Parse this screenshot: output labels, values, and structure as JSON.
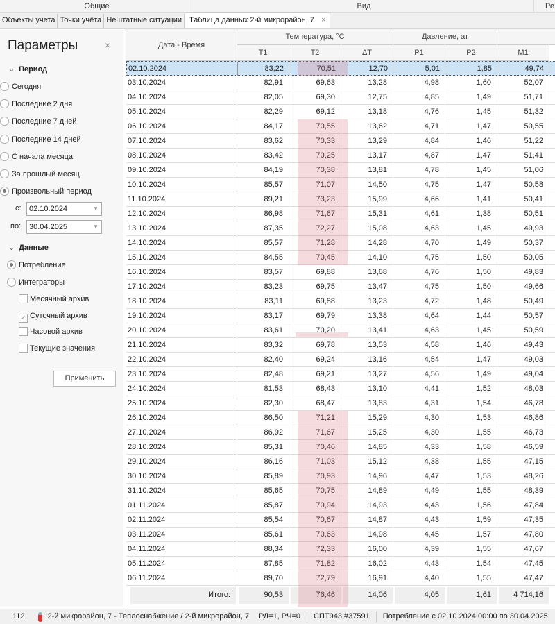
{
  "ribbon": {
    "groups": [
      "Общие",
      "Вид",
      "Ре"
    ]
  },
  "tabs": [
    {
      "label": "Объекты учета"
    },
    {
      "label": "Точки учёта"
    },
    {
      "label": "Нештатные ситуации"
    },
    {
      "label": "Таблица данных 2-й микрорайон, 7",
      "close": "×"
    }
  ],
  "params": {
    "title": "Параметры",
    "close": "×",
    "period_label": "Период",
    "period_options": [
      "Сегодня",
      "Последние 2 дня",
      "Последние 7 дней",
      "Последние 14 дней",
      "С начала месяца",
      "За прошлый месяц",
      "Произвольный период"
    ],
    "period_selected": 6,
    "from_label": "с:",
    "from_value": "02.10.2024",
    "to_label": "по:",
    "to_value": "30.04.2025",
    "data_label": "Данные",
    "data_options": [
      "Потребление",
      "Интеграторы"
    ],
    "data_selected": 0,
    "archives": [
      {
        "label": "Месячный архив",
        "checked": false
      },
      {
        "label": "Суточный архив",
        "checked": true
      },
      {
        "label": "Часовой архив",
        "checked": false
      },
      {
        "label": "Текущие значения",
        "checked": false
      }
    ],
    "apply": "Применить"
  },
  "table": {
    "date_header": "Дата - Время",
    "temp_group": "Температура, °С",
    "pressure_group": "Давление, ат",
    "columns": [
      "T1",
      "T2",
      "ΔT",
      "P1",
      "P2",
      "M1"
    ],
    "rows": [
      [
        "02.10.2024",
        "83,22",
        "70,51",
        "12,70",
        "5,01",
        "1,85",
        "49,74",
        1
      ],
      [
        "03.10.2024",
        "82,91",
        "69,63",
        "13,28",
        "4,98",
        "1,60",
        "52,07",
        0
      ],
      [
        "04.10.2024",
        "82,05",
        "69,30",
        "12,75",
        "4,85",
        "1,49",
        "51,71",
        0
      ],
      [
        "05.10.2024",
        "82,29",
        "69,12",
        "13,18",
        "4,76",
        "1,45",
        "51,32",
        0
      ],
      [
        "06.10.2024",
        "84,17",
        "70,55",
        "13,62",
        "4,71",
        "1,47",
        "50,55",
        1
      ],
      [
        "07.10.2024",
        "83,62",
        "70,33",
        "13,29",
        "4,84",
        "1,46",
        "51,22",
        1
      ],
      [
        "08.10.2024",
        "83,42",
        "70,25",
        "13,17",
        "4,87",
        "1,47",
        "51,41",
        1
      ],
      [
        "09.10.2024",
        "84,19",
        "70,38",
        "13,81",
        "4,78",
        "1,45",
        "51,06",
        1
      ],
      [
        "10.10.2024",
        "85,57",
        "71,07",
        "14,50",
        "4,75",
        "1,47",
        "50,58",
        1
      ],
      [
        "11.10.2024",
        "89,21",
        "73,23",
        "15,99",
        "4,66",
        "1,41",
        "50,41",
        1
      ],
      [
        "12.10.2024",
        "86,98",
        "71,67",
        "15,31",
        "4,61",
        "1,38",
        "50,51",
        1
      ],
      [
        "13.10.2024",
        "87,35",
        "72,27",
        "15,08",
        "4,63",
        "1,45",
        "49,93",
        1
      ],
      [
        "14.10.2024",
        "85,57",
        "71,28",
        "14,28",
        "4,70",
        "1,49",
        "50,37",
        1
      ],
      [
        "15.10.2024",
        "84,55",
        "70,45",
        "14,10",
        "4,75",
        "1,50",
        "50,05",
        1
      ],
      [
        "16.10.2024",
        "83,57",
        "69,88",
        "13,68",
        "4,76",
        "1,50",
        "49,83",
        0
      ],
      [
        "17.10.2024",
        "83,23",
        "69,75",
        "13,47",
        "4,75",
        "1,50",
        "49,66",
        0
      ],
      [
        "18.10.2024",
        "83,11",
        "69,88",
        "13,23",
        "4,72",
        "1,48",
        "50,49",
        0
      ],
      [
        "19.10.2024",
        "83,17",
        "69,79",
        "13,38",
        "4,64",
        "1,44",
        "50,57",
        0
      ],
      [
        "20.10.2024",
        "83,61",
        "70,20",
        "13,41",
        "4,63",
        "1,45",
        "50,59",
        1
      ],
      [
        "21.10.2024",
        "83,32",
        "69,78",
        "13,53",
        "4,58",
        "1,46",
        "49,43",
        0
      ],
      [
        "22.10.2024",
        "82,40",
        "69,24",
        "13,16",
        "4,54",
        "1,47",
        "49,03",
        0
      ],
      [
        "23.10.2024",
        "82,48",
        "69,21",
        "13,27",
        "4,56",
        "1,49",
        "49,04",
        0
      ],
      [
        "24.10.2024",
        "81,53",
        "68,43",
        "13,10",
        "4,41",
        "1,52",
        "48,03",
        0
      ],
      [
        "25.10.2024",
        "82,30",
        "68,47",
        "13,83",
        "4,31",
        "1,54",
        "46,78",
        0
      ],
      [
        "26.10.2024",
        "86,50",
        "71,21",
        "15,29",
        "4,30",
        "1,53",
        "46,86",
        1
      ],
      [
        "27.10.2024",
        "86,92",
        "71,67",
        "15,25",
        "4,30",
        "1,55",
        "46,73",
        1
      ],
      [
        "28.10.2024",
        "85,31",
        "70,46",
        "14,85",
        "4,33",
        "1,58",
        "46,59",
        1
      ],
      [
        "29.10.2024",
        "86,16",
        "71,03",
        "15,12",
        "4,38",
        "1,55",
        "47,15",
        1
      ],
      [
        "30.10.2024",
        "85,89",
        "70,93",
        "14,96",
        "4,47",
        "1,53",
        "48,26",
        1
      ],
      [
        "31.10.2024",
        "85,65",
        "70,75",
        "14,89",
        "4,49",
        "1,55",
        "48,39",
        1
      ],
      [
        "01.11.2024",
        "85,87",
        "70,94",
        "14,93",
        "4,43",
        "1,56",
        "47,84",
        1
      ],
      [
        "02.11.2024",
        "85,54",
        "70,67",
        "14,87",
        "4,43",
        "1,59",
        "47,35",
        1
      ],
      [
        "03.11.2024",
        "85,61",
        "70,63",
        "14,98",
        "4,45",
        "1,57",
        "47,80",
        1
      ],
      [
        "04.11.2024",
        "88,34",
        "72,33",
        "16,00",
        "4,39",
        "1,55",
        "47,67",
        1
      ],
      [
        "05.11.2024",
        "87,85",
        "71,82",
        "16,02",
        "4,43",
        "1,54",
        "47,45",
        1
      ],
      [
        "06.11.2024",
        "89,70",
        "72,79",
        "16,91",
        "4,40",
        "1,55",
        "47,47",
        1
      ]
    ],
    "footer": {
      "label": "Итого:",
      "values": [
        "90,53",
        "76,46",
        "14,06",
        "4,05",
        "1,61",
        "4 714,16"
      ]
    }
  },
  "status": {
    "count": "112",
    "object": "2-й микрорайон, 7 - Теплоснабжение / 2-й микрорайон, 7",
    "rd": "РД=1, РЧ=0",
    "device": "СПТ943 #37591",
    "period": "Потребление с 02.10.2024 00:00 по 30.04.2025"
  },
  "colors": {
    "selection": "#cde4f7",
    "highlight": "#e9b8bd"
  }
}
